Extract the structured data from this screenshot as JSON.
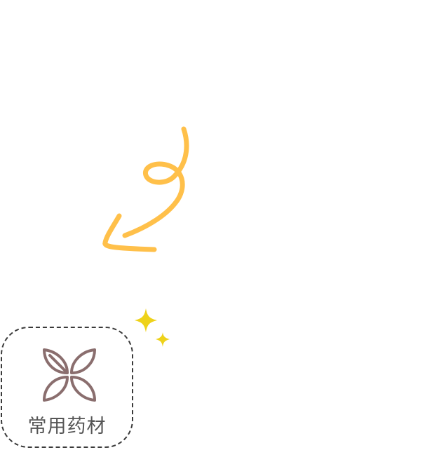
{
  "tile": {
    "label": "常用药材",
    "icon": "four-leaf-herb-icon"
  },
  "decorations": {
    "arrow": "curly-arrow-icon",
    "sparkles": "sparkles-icon"
  },
  "colors": {
    "arrow": "#FFC04A",
    "sparkle": "#EED21A",
    "icon_stroke": "#8A6E6E",
    "border": "#3A3A3A",
    "label": "#555555"
  }
}
